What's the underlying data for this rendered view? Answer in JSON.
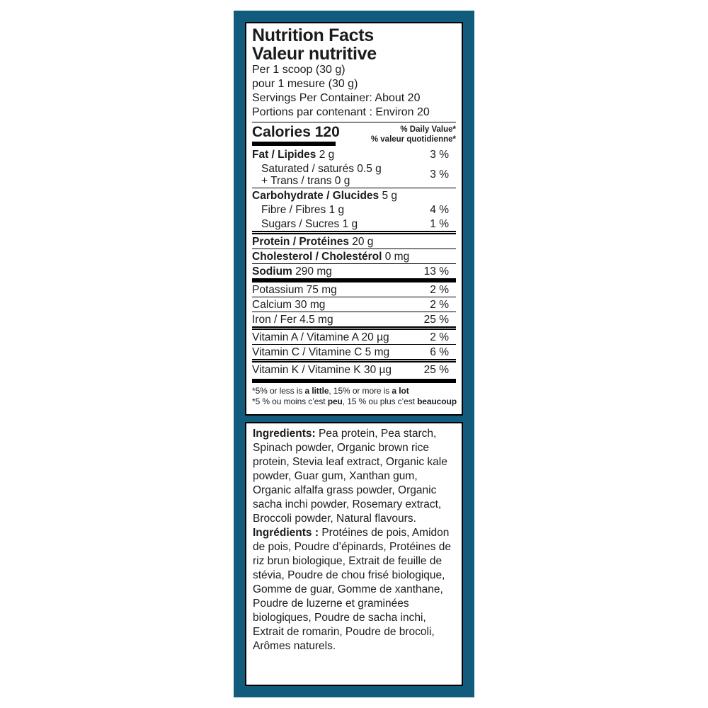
{
  "colors": {
    "teal": "#115c7c",
    "ink": "#1b1b1b",
    "panel": "#ffffff",
    "rule": "#000000"
  },
  "nutrition": {
    "title_en": "Nutrition Facts",
    "title_fr": "Valeur nutritive",
    "serving_lines": [
      "Per 1 scoop (30 g)",
      "pour 1 mesure (30 g)",
      "Servings Per Container: About 20",
      "Portions par contenant : Environ 20"
    ],
    "calories_label": "Calories",
    "calories_value": "120",
    "daily_value_en": "% Daily Value*",
    "daily_value_fr": "% valeur quotidienne*",
    "rows": [
      {
        "bold": "Fat / Lipides",
        "text": " 2 g",
        "pct": "3 %",
        "sep": "none"
      },
      {
        "multiline": [
          "Saturated / saturés 0.5 g",
          "+ Trans / trans 0 g"
        ],
        "indent": true,
        "pct": "3 %",
        "sep": "none"
      },
      {
        "bold": "Carbohydrate / Glucides",
        "text": " 5 g",
        "pct": "",
        "sep": "thin"
      },
      {
        "text": "Fibre / Fibres 1 g",
        "indent": true,
        "pct": "4 %",
        "sep": "none"
      },
      {
        "text": "Sugars / Sucres 1 g",
        "indent": true,
        "pct": "1 %",
        "sep": "none"
      },
      {
        "bold": "Protein / Protéines",
        "text": " 20 g",
        "pct": "",
        "sep": "double"
      },
      {
        "bold": "Cholesterol / Cholestérol",
        "text": " 0 mg",
        "pct": "",
        "sep": "thin"
      },
      {
        "bold": "Sodium",
        "text": " 290 mg",
        "pct": "13 %",
        "sep": "thin"
      },
      {
        "text": "Potassium 75 mg",
        "pct": "2 %",
        "sep": "thick"
      },
      {
        "text": "Calcium 30 mg",
        "pct": "2 %",
        "sep": "thin"
      },
      {
        "text": "Iron / Fer 4.5 mg",
        "pct": "25 %",
        "sep": "thin"
      },
      {
        "text": "Vitamin A / Vitamine A 20 µg",
        "pct": "2 %",
        "sep": "double"
      },
      {
        "text": "Vitamin C / Vitamine C 5 mg",
        "pct": "6 %",
        "sep": "thin"
      },
      {
        "text": "Vitamin K / Vitamine K 30 µg",
        "pct": "25 %",
        "sep": "double"
      }
    ],
    "footnotes": [
      [
        {
          "t": "*5% or less is ",
          "b": false
        },
        {
          "t": "a little",
          "b": true
        },
        {
          "t": ", 15% or more is ",
          "b": false
        },
        {
          "t": "a lot",
          "b": true
        }
      ],
      [
        {
          "t": "*5 % ou moins c’est ",
          "b": false
        },
        {
          "t": "peu",
          "b": true
        },
        {
          "t": ", 15 % ou plus c’est ",
          "b": false
        },
        {
          "t": "beaucoup",
          "b": true
        }
      ]
    ]
  },
  "ingredients": {
    "paragraphs": [
      {
        "lead": "Ingredients:",
        "text": " Pea protein, Pea starch, Spinach powder, Organic brown rice protein, Stevia leaf extract, Organic kale powder, Guar gum, Xanthan gum, Organic alfalfa grass powder, Organic sacha inchi powder, Rosemary extract, Broccoli powder, Natural flavours."
      },
      {
        "lead": "Ingrédients :",
        "text": " Protéines de pois, Amidon de pois, Poudre d’épinards, Protéines de riz brun biologique, Extrait de feuille de stévia, Poudre de chou frisé biologique, Gomme de guar, Gomme de xanthane, Poudre de luzerne et graminées biologiques, Poudre de sacha inchi, Extrait de romarin, Poudre de brocoli, Arômes naturels."
      }
    ]
  }
}
